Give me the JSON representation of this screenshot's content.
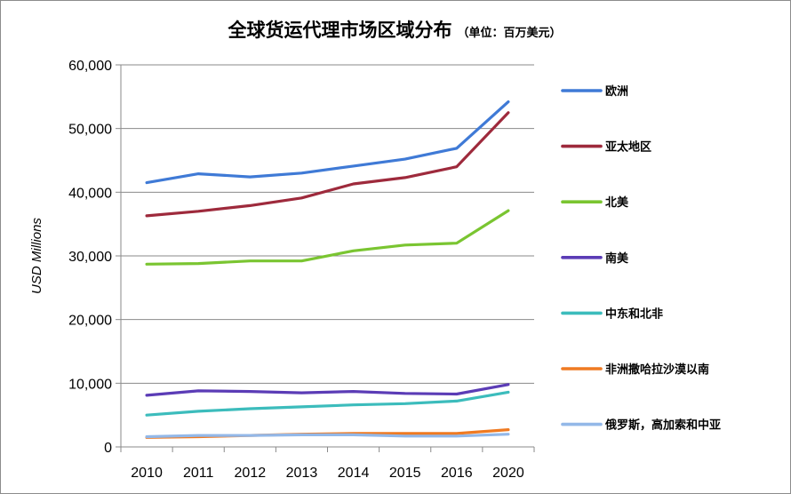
{
  "chart_data": {
    "type": "line",
    "title": "全球货运代理市场区域分布",
    "subtitle": "（单位：百万美元）",
    "xlabel": "",
    "ylabel": "USD Millions",
    "categories": [
      "2010",
      "2011",
      "2012",
      "2013",
      "2014",
      "2015",
      "2016",
      "2020"
    ],
    "ylim": [
      0,
      60000
    ],
    "yticks": [
      0,
      10000,
      20000,
      30000,
      40000,
      50000,
      60000
    ],
    "ytick_labels": [
      "0",
      "10,000",
      "20,000",
      "30,000",
      "40,000",
      "50,000",
      "60,000"
    ],
    "grid": true,
    "legend_position": "right",
    "series": [
      {
        "name": "欧洲",
        "color": "#3f7ad6",
        "values": [
          41500,
          42900,
          42400,
          43000,
          44100,
          45200,
          46900,
          54200
        ]
      },
      {
        "name": "亚太地区",
        "color": "#9e2a3c",
        "values": [
          36300,
          37000,
          37900,
          39100,
          41300,
          42300,
          44000,
          52500
        ]
      },
      {
        "name": "北美",
        "color": "#7ac531",
        "values": [
          28700,
          28800,
          29200,
          29200,
          30800,
          31700,
          32000,
          37100
        ]
      },
      {
        "name": "南美",
        "color": "#5b3cb6",
        "values": [
          8100,
          8800,
          8700,
          8500,
          8700,
          8400,
          8300,
          9800
        ]
      },
      {
        "name": "中东和北非",
        "color": "#3cbcbc",
        "values": [
          5000,
          5600,
          6000,
          6300,
          6600,
          6800,
          7200,
          8600
        ]
      },
      {
        "name": "非洲撒哈拉沙漠以南",
        "color": "#ef7a22",
        "values": [
          1500,
          1600,
          1800,
          2000,
          2100,
          2100,
          2100,
          2700
        ]
      },
      {
        "name": "俄罗斯，高加索和中亚",
        "color": "#93b8e8",
        "values": [
          1600,
          1800,
          1800,
          1900,
          1900,
          1700,
          1700,
          2000
        ]
      }
    ]
  }
}
